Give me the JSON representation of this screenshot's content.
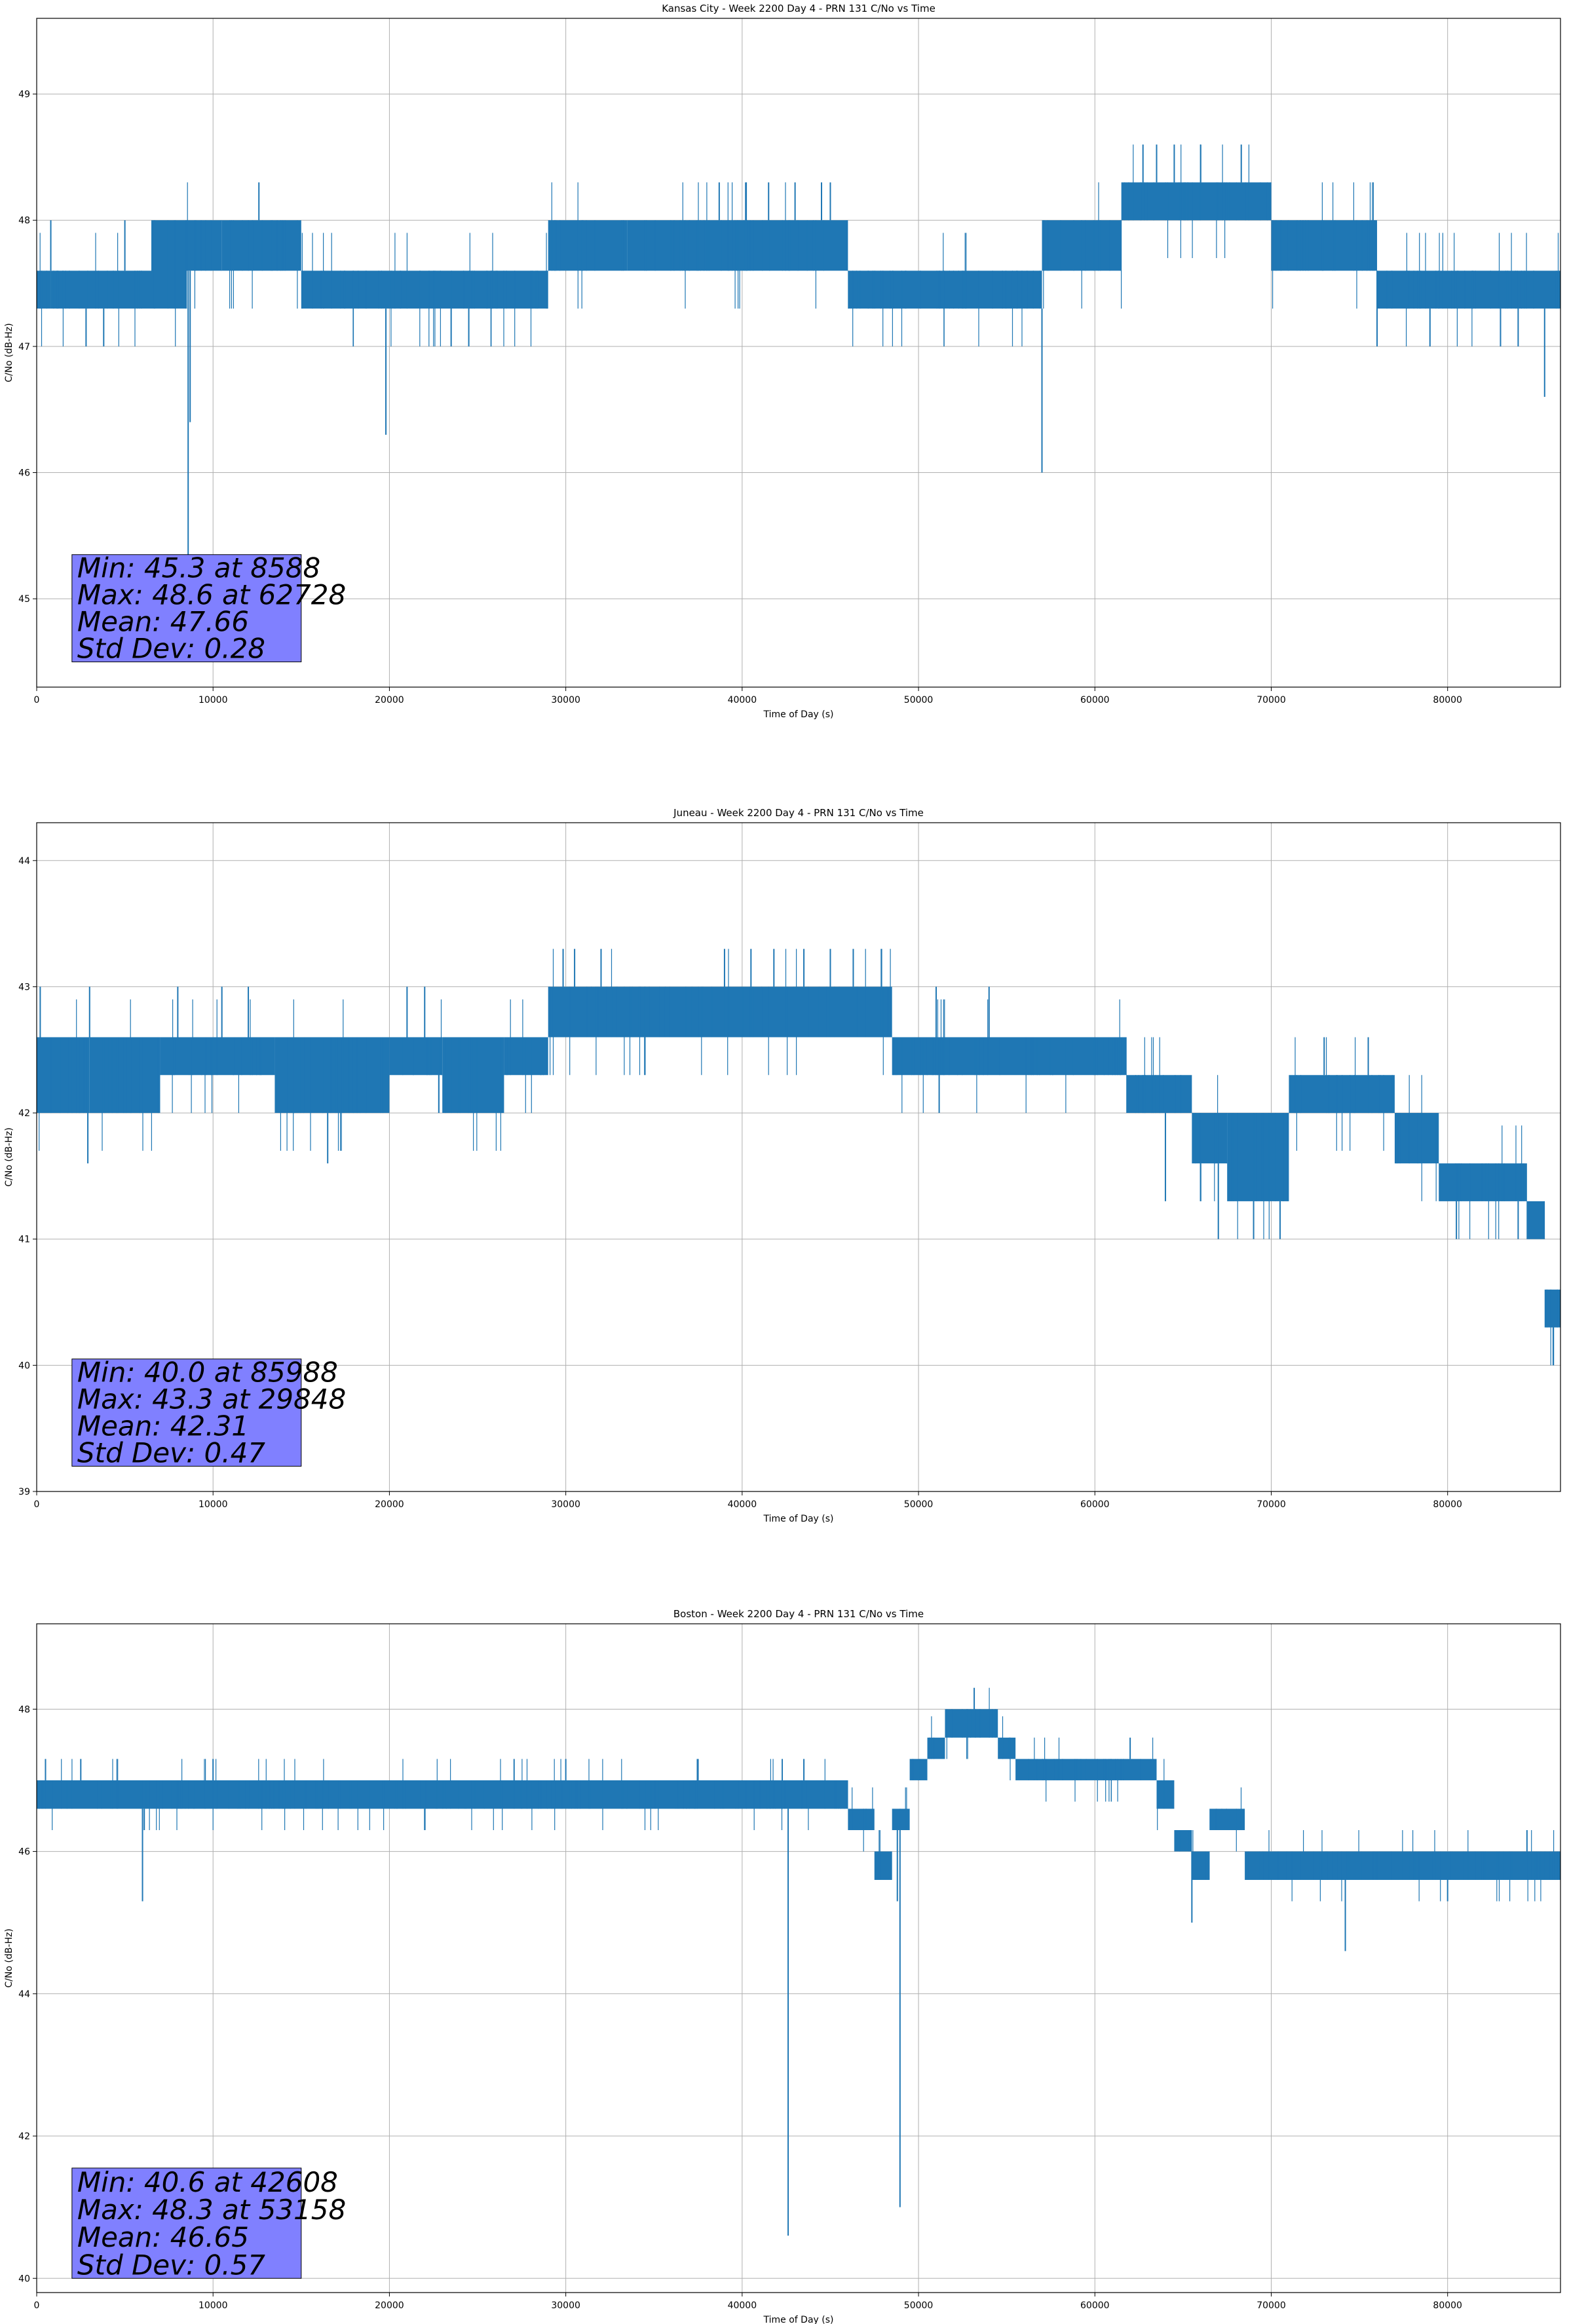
{
  "chart_data": [
    {
      "type": "line",
      "title": "Kansas City - Week 2200 Day 4 - PRN 131 C/No vs Time",
      "xlabel": "Time of Day (s)",
      "ylabel": "C/No (dB-Hz)",
      "xlim": [
        0,
        86400
      ],
      "ylim": [
        44.3,
        49.6
      ],
      "xticks": [
        0,
        10000,
        20000,
        30000,
        40000,
        50000,
        60000,
        70000,
        80000
      ],
      "yticks": [
        45,
        46,
        47,
        48,
        49
      ],
      "grid": true,
      "series_color": "#1f77b4",
      "stats_box_color": "#8080ff",
      "stats": [
        "Min: 45.3 at 8588",
        "Max: 48.6 at 62728",
        "Mean: 47.66",
        "Std Dev: 0.28"
      ],
      "series": [
        {
          "bands": [
            {
              "x0": 0,
              "x1": 800,
              "low": 47.3,
              "high": 47.6
            },
            {
              "x0": 800,
              "x1": 6500,
              "low": 47.3,
              "high": 47.6
            },
            {
              "x0": 6500,
              "x1": 8500,
              "low": 47.3,
              "high": 48.0
            },
            {
              "x0": 8500,
              "x1": 10500,
              "low": 47.6,
              "high": 48.0
            },
            {
              "x0": 10500,
              "x1": 15000,
              "low": 47.6,
              "high": 48.0
            },
            {
              "x0": 15000,
              "x1": 26500,
              "low": 47.3,
              "high": 47.6
            },
            {
              "x0": 26500,
              "x1": 29000,
              "low": 47.3,
              "high": 47.6
            },
            {
              "x0": 29000,
              "x1": 33500,
              "low": 47.6,
              "high": 48.0
            },
            {
              "x0": 33500,
              "x1": 38000,
              "low": 47.6,
              "high": 48.0
            },
            {
              "x0": 38000,
              "x1": 46000,
              "low": 47.6,
              "high": 48.0
            },
            {
              "x0": 46000,
              "x1": 57000,
              "low": 47.3,
              "high": 47.6
            },
            {
              "x0": 57000,
              "x1": 61500,
              "low": 47.6,
              "high": 48.0
            },
            {
              "x0": 61500,
              "x1": 70000,
              "low": 48.0,
              "high": 48.3
            },
            {
              "x0": 70000,
              "x1": 76000,
              "low": 47.6,
              "high": 48.0
            },
            {
              "x0": 76000,
              "x1": 86400,
              "low": 47.3,
              "high": 47.6
            }
          ],
          "spikes": [
            {
              "x": 800,
              "y": 48.0
            },
            {
              "x": 2800,
              "y": 47.0
            },
            {
              "x": 3800,
              "y": 47.0
            },
            {
              "x": 5000,
              "y": 48.0
            },
            {
              "x": 8588,
              "y": 45.3
            },
            {
              "x": 8700,
              "y": 46.4
            },
            {
              "x": 12600,
              "y": 48.3
            },
            {
              "x": 19800,
              "y": 46.3
            },
            {
              "x": 23500,
              "y": 47.0
            },
            {
              "x": 24500,
              "y": 47.0
            },
            {
              "x": 38700,
              "y": 48.3
            },
            {
              "x": 40200,
              "y": 48.3
            },
            {
              "x": 41500,
              "y": 48.3
            },
            {
              "x": 43000,
              "y": 48.3
            },
            {
              "x": 44500,
              "y": 48.3
            },
            {
              "x": 45000,
              "y": 48.3
            },
            {
              "x": 57000,
              "y": 46.0
            },
            {
              "x": 60500,
              "y": 48.0
            },
            {
              "x": 62728,
              "y": 48.6
            },
            {
              "x": 63500,
              "y": 48.6
            },
            {
              "x": 64500,
              "y": 48.6
            },
            {
              "x": 66000,
              "y": 48.6
            },
            {
              "x": 68300,
              "y": 48.6
            },
            {
              "x": 76000,
              "y": 47.0
            },
            {
              "x": 79000,
              "y": 47.0
            },
            {
              "x": 83000,
              "y": 47.0
            },
            {
              "x": 84000,
              "y": 47.0
            },
            {
              "x": 85500,
              "y": 46.6
            }
          ]
        }
      ]
    },
    {
      "type": "line",
      "title": "Juneau - Week 2200 Day 4 - PRN 131 C/No vs Time",
      "xlabel": "Time of Day (s)",
      "ylabel": "C/No (dB-Hz)",
      "xlim": [
        0,
        86400
      ],
      "ylim": [
        39.0,
        44.3
      ],
      "xticks": [
        0,
        10000,
        20000,
        30000,
        40000,
        50000,
        60000,
        70000,
        80000
      ],
      "yticks": [
        39,
        40,
        41,
        42,
        43,
        44
      ],
      "grid": true,
      "series_color": "#1f77b4",
      "stats_box_color": "#8080ff",
      "stats": [
        "Min: 40.0 at 85988",
        "Max: 43.3 at 29848",
        "Mean: 42.31",
        "Std Dev: 0.47"
      ],
      "series": [
        {
          "bands": [
            {
              "x0": 0,
              "x1": 3000,
              "low": 42.0,
              "high": 42.6
            },
            {
              "x0": 3000,
              "x1": 7000,
              "low": 42.0,
              "high": 42.6
            },
            {
              "x0": 7000,
              "x1": 13500,
              "low": 42.3,
              "high": 42.6
            },
            {
              "x0": 13500,
              "x1": 20000,
              "low": 42.0,
              "high": 42.6
            },
            {
              "x0": 20000,
              "x1": 23000,
              "low": 42.3,
              "high": 42.6
            },
            {
              "x0": 23000,
              "x1": 26500,
              "low": 42.0,
              "high": 42.6
            },
            {
              "x0": 26500,
              "x1": 29000,
              "low": 42.3,
              "high": 42.6
            },
            {
              "x0": 29000,
              "x1": 48500,
              "low": 42.6,
              "high": 43.0
            },
            {
              "x0": 48500,
              "x1": 61800,
              "low": 42.3,
              "high": 42.6
            },
            {
              "x0": 61800,
              "x1": 65500,
              "low": 42.0,
              "high": 42.3
            },
            {
              "x0": 65500,
              "x1": 67500,
              "low": 41.6,
              "high": 42.0
            },
            {
              "x0": 67500,
              "x1": 71000,
              "low": 41.3,
              "high": 42.0
            },
            {
              "x0": 71000,
              "x1": 77000,
              "low": 42.0,
              "high": 42.3
            },
            {
              "x0": 77000,
              "x1": 79500,
              "low": 41.6,
              "high": 42.0
            },
            {
              "x0": 79500,
              "x1": 84500,
              "low": 41.3,
              "high": 41.6
            },
            {
              "x0": 84500,
              "x1": 85500,
              "low": 41.0,
              "high": 41.3
            },
            {
              "x0": 85500,
              "x1": 86400,
              "low": 40.3,
              "high": 40.6
            }
          ],
          "spikes": [
            {
              "x": 200,
              "y": 43.0
            },
            {
              "x": 2900,
              "y": 41.6
            },
            {
              "x": 3000,
              "y": 43.0
            },
            {
              "x": 8000,
              "y": 43.0
            },
            {
              "x": 10500,
              "y": 43.0
            },
            {
              "x": 12000,
              "y": 43.0
            },
            {
              "x": 16500,
              "y": 41.6
            },
            {
              "x": 21000,
              "y": 43.0
            },
            {
              "x": 22000,
              "y": 43.0
            },
            {
              "x": 29848,
              "y": 43.3
            },
            {
              "x": 30500,
              "y": 43.3
            },
            {
              "x": 32000,
              "y": 43.3
            },
            {
              "x": 39000,
              "y": 43.3
            },
            {
              "x": 40500,
              "y": 43.3
            },
            {
              "x": 41800,
              "y": 43.3
            },
            {
              "x": 43500,
              "y": 43.3
            },
            {
              "x": 45000,
              "y": 43.3
            },
            {
              "x": 46300,
              "y": 43.3
            },
            {
              "x": 51000,
              "y": 43.0
            },
            {
              "x": 54000,
              "y": 43.0
            },
            {
              "x": 64000,
              "y": 41.3
            },
            {
              "x": 66000,
              "y": 41.3
            },
            {
              "x": 67000,
              "y": 41.0
            },
            {
              "x": 69000,
              "y": 41.0
            },
            {
              "x": 70500,
              "y": 41.0
            },
            {
              "x": 73000,
              "y": 42.6
            },
            {
              "x": 75500,
              "y": 42.6
            },
            {
              "x": 80500,
              "y": 41.0
            },
            {
              "x": 84000,
              "y": 41.0
            },
            {
              "x": 85988,
              "y": 40.0
            },
            {
              "x": 86000,
              "y": 40.0
            }
          ]
        }
      ]
    },
    {
      "type": "line",
      "title": "Boston - Week 2200 Day 4 - PRN 131 C/No vs Time",
      "xlabel": "Time of Day (s)",
      "ylabel": "C/No (dB-Hz)",
      "xlim": [
        0,
        86400
      ],
      "ylim": [
        39.8,
        49.2
      ],
      "xticks": [
        0,
        10000,
        20000,
        30000,
        40000,
        50000,
        60000,
        70000,
        80000
      ],
      "yticks": [
        40,
        42,
        44,
        46,
        48
      ],
      "grid": true,
      "series_color": "#1f77b4",
      "stats_box_color": "#8080ff",
      "stats": [
        "Min: 40.6 at 42608",
        "Max: 48.3 at 53158",
        "Mean: 46.65",
        "Std Dev: 0.57"
      ],
      "series": [
        {
          "bands": [
            {
              "x0": 0,
              "x1": 46000,
              "low": 46.6,
              "high": 47.0
            },
            {
              "x0": 46000,
              "x1": 47500,
              "low": 46.3,
              "high": 46.6
            },
            {
              "x0": 47500,
              "x1": 48500,
              "low": 45.6,
              "high": 46.0
            },
            {
              "x0": 48500,
              "x1": 49500,
              "low": 46.3,
              "high": 46.6
            },
            {
              "x0": 49500,
              "x1": 50500,
              "low": 47.0,
              "high": 47.3
            },
            {
              "x0": 50500,
              "x1": 51500,
              "low": 47.3,
              "high": 47.6
            },
            {
              "x0": 51500,
              "x1": 54500,
              "low": 47.6,
              "high": 48.0
            },
            {
              "x0": 54500,
              "x1": 55500,
              "low": 47.3,
              "high": 47.6
            },
            {
              "x0": 55500,
              "x1": 59000,
              "low": 47.0,
              "high": 47.3
            },
            {
              "x0": 59000,
              "x1": 63500,
              "low": 47.0,
              "high": 47.3
            },
            {
              "x0": 63500,
              "x1": 64500,
              "low": 46.6,
              "high": 47.0
            },
            {
              "x0": 64500,
              "x1": 65500,
              "low": 46.0,
              "high": 46.3
            },
            {
              "x0": 65500,
              "x1": 66500,
              "low": 45.6,
              "high": 46.0
            },
            {
              "x0": 66500,
              "x1": 68500,
              "low": 46.3,
              "high": 46.6
            },
            {
              "x0": 68500,
              "x1": 86400,
              "low": 45.6,
              "high": 46.0
            }
          ],
          "spikes": [
            {
              "x": 500,
              "y": 47.3
            },
            {
              "x": 2500,
              "y": 47.3
            },
            {
              "x": 6000,
              "y": 45.3
            },
            {
              "x": 6100,
              "y": 46.3
            },
            {
              "x": 10000,
              "y": 47.3
            },
            {
              "x": 22000,
              "y": 46.3
            },
            {
              "x": 30000,
              "y": 47.3
            },
            {
              "x": 37500,
              "y": 47.3
            },
            {
              "x": 42608,
              "y": 40.6
            },
            {
              "x": 43500,
              "y": 47.3
            },
            {
              "x": 48800,
              "y": 45.3
            },
            {
              "x": 48950,
              "y": 41.0
            },
            {
              "x": 53158,
              "y": 48.3
            },
            {
              "x": 62000,
              "y": 47.6
            },
            {
              "x": 65500,
              "y": 45.0
            },
            {
              "x": 74200,
              "y": 44.6
            },
            {
              "x": 80000,
              "y": 45.3
            },
            {
              "x": 84500,
              "y": 46.3
            }
          ]
        }
      ]
    }
  ]
}
